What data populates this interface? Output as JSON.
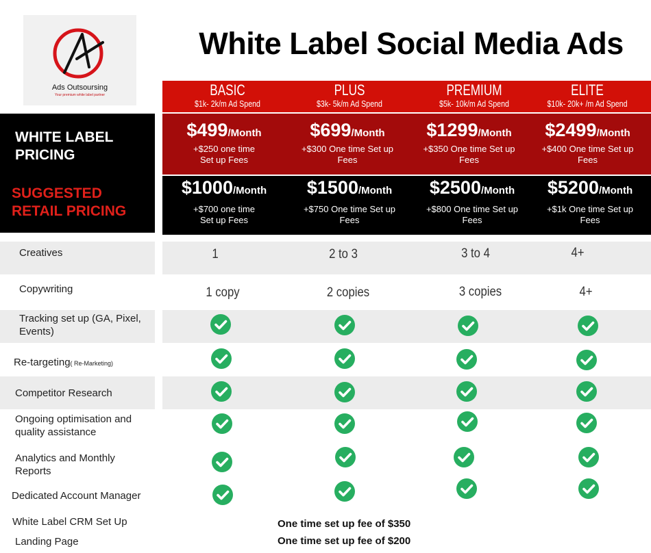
{
  "logo": {
    "name": "Ads Outsoursing",
    "tagline": "Your premium white label partner"
  },
  "title": "White Label Social Media Ads",
  "plans": [
    {
      "name": "BASIC",
      "spend": "$1k- 2k/m Ad Spend",
      "wl_price": "$499",
      "wl_unit": "/Month",
      "wl_fee": "+$250 one time Set up Fees",
      "retail_price": "$1000",
      "retail_unit": "/Month",
      "retail_fee": "+$700 one time Set up Fees"
    },
    {
      "name": "PLUS",
      "spend": "$3k- 5k/m Ad Spend",
      "wl_price": "$699",
      "wl_unit": "/Month",
      "wl_fee": "+$300 One time Set up Fees",
      "retail_price": "$1500",
      "retail_unit": "/Month",
      "retail_fee": "+$750 One time Set up Fees"
    },
    {
      "name": "PREMIUM",
      "spend": "$5k- 10k/m Ad Spend",
      "wl_price": "$1299",
      "wl_unit": "/Month",
      "wl_fee": "+$350 One time Set up Fees",
      "retail_price": "$2500",
      "retail_unit": "/Month",
      "retail_fee": "+$800 One time Set up Fees"
    },
    {
      "name": "ELITE",
      "spend": "$10k- 20k+ /m Ad Spend",
      "wl_price": "$2499",
      "wl_unit": "/Month",
      "wl_fee": "+$400 One time Set up Fees",
      "retail_price": "$5200",
      "retail_unit": "/Month",
      "retail_fee": "+$1k One time Set up Fees"
    }
  ],
  "labels": {
    "white_label_pricing": "WHITE LABEL PRICING",
    "suggested_retail": "SUGGESTED RETAIL PRICING"
  },
  "features": [
    {
      "name": "Creatives",
      "values": [
        "1",
        "2 to 3",
        "3 to 4",
        "4+"
      ]
    },
    {
      "name": "Copywriting",
      "values": [
        "1 copy",
        "2 copies",
        "3 copies",
        "4+"
      ]
    },
    {
      "name": "Tracking set up (GA, Pixel, Events)",
      "check": true
    },
    {
      "name": "Re-targeting",
      "note": "( Re-Marketing)",
      "check": true
    },
    {
      "name": "Competitor Research",
      "check": true
    },
    {
      "name": "Ongoing optimisation and quality assistance",
      "check": true
    },
    {
      "name": "Analytics and Monthly Reports",
      "check": true
    },
    {
      "name": "Dedicated Account Manager",
      "check": true
    },
    {
      "name": "White Label CRM Set Up",
      "fee": "One time set up fee of $350"
    },
    {
      "name": "Landing Page",
      "fee": "One time set up fee of $200"
    }
  ],
  "colors": {
    "header_red": "#d21008",
    "wl_red": "#a30b0b",
    "retail_black": "#000000",
    "check_green": "#27ae60",
    "retail_label_red": "#e0201a"
  },
  "icons": {
    "check": "check-circle-icon",
    "logo": "logo-mark-icon"
  }
}
